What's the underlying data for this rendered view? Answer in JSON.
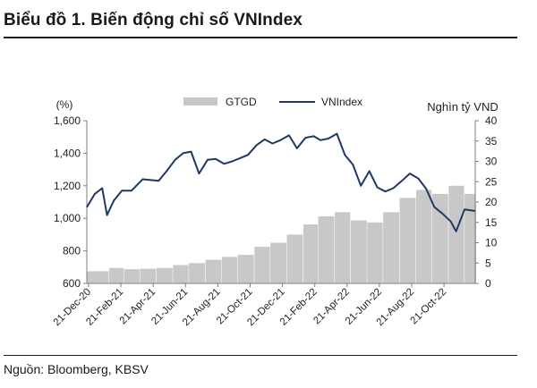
{
  "header": {
    "title": "Biểu đồ 1. Biến động chỉ số VNIndex"
  },
  "footer": {
    "source": "Nguồn: Bloomberg, KBSV"
  },
  "colors": {
    "line": "#1f3864",
    "bar": "#c8c8c8",
    "axis": "#7f7f7f"
  },
  "chart_data": {
    "type": "bar+line",
    "title": "",
    "left_axis": {
      "label": "(%)",
      "ylim": [
        600,
        1600
      ],
      "ticks": [
        "600",
        "800",
        "1,000",
        "1,200",
        "1,400",
        "1,600"
      ]
    },
    "right_axis": {
      "label": "Nghìn tỷ VND",
      "ylim": [
        0,
        40
      ],
      "ticks": [
        "0",
        "5",
        "10",
        "15",
        "20",
        "25",
        "30",
        "35",
        "40"
      ]
    },
    "x_tick_labels": [
      "21-Dec-20",
      "21-Feb-21",
      "21-Apr-21",
      "21-Jun-21",
      "21-Aug-21",
      "21-Oct-21",
      "21-Dec-21",
      "21-Feb-22",
      "21-Apr-22",
      "21-Jun-22",
      "21-Aug-22",
      "21-Oct-22"
    ],
    "x_range": [
      "2020-12-21",
      "2022-12-21"
    ],
    "grid": false,
    "legend": {
      "position": "top",
      "entries": [
        "GTGD",
        "VNIndex"
      ]
    },
    "series": [
      {
        "name": "VNIndex",
        "type": "line",
        "axis": "left",
        "points": [
          [
            "2020-12-21",
            1068
          ],
          [
            "2021-01-05",
            1150
          ],
          [
            "2021-01-19",
            1185
          ],
          [
            "2021-01-28",
            1020
          ],
          [
            "2021-02-10",
            1110
          ],
          [
            "2021-02-25",
            1170
          ],
          [
            "2021-03-15",
            1170
          ],
          [
            "2021-04-05",
            1240
          ],
          [
            "2021-04-20",
            1235
          ],
          [
            "2021-05-05",
            1230
          ],
          [
            "2021-05-20",
            1290
          ],
          [
            "2021-06-05",
            1360
          ],
          [
            "2021-06-20",
            1400
          ],
          [
            "2021-07-05",
            1410
          ],
          [
            "2021-07-20",
            1275
          ],
          [
            "2021-08-05",
            1360
          ],
          [
            "2021-08-20",
            1365
          ],
          [
            "2021-09-05",
            1335
          ],
          [
            "2021-09-20",
            1350
          ],
          [
            "2021-10-05",
            1370
          ],
          [
            "2021-10-20",
            1390
          ],
          [
            "2021-11-05",
            1450
          ],
          [
            "2021-11-20",
            1485
          ],
          [
            "2021-12-05",
            1460
          ],
          [
            "2021-12-20",
            1480
          ],
          [
            "2022-01-05",
            1510
          ],
          [
            "2022-01-20",
            1430
          ],
          [
            "2022-02-05",
            1495
          ],
          [
            "2022-02-20",
            1505
          ],
          [
            "2022-03-05",
            1480
          ],
          [
            "2022-03-20",
            1490
          ],
          [
            "2022-04-05",
            1520
          ],
          [
            "2022-04-20",
            1390
          ],
          [
            "2022-05-05",
            1330
          ],
          [
            "2022-05-20",
            1200
          ],
          [
            "2022-06-05",
            1290
          ],
          [
            "2022-06-20",
            1190
          ],
          [
            "2022-07-05",
            1165
          ],
          [
            "2022-07-20",
            1185
          ],
          [
            "2022-08-05",
            1230
          ],
          [
            "2022-08-20",
            1275
          ],
          [
            "2022-09-05",
            1245
          ],
          [
            "2022-09-20",
            1180
          ],
          [
            "2022-10-05",
            1070
          ],
          [
            "2022-10-20",
            1030
          ],
          [
            "2022-11-05",
            980
          ],
          [
            "2022-11-15",
            920
          ],
          [
            "2022-12-01",
            1055
          ],
          [
            "2022-12-21",
            1045
          ]
        ]
      },
      {
        "name": "GTGD",
        "type": "bar",
        "axis": "right",
        "points": [
          [
            "2020-12-21",
            3.0
          ],
          [
            "2021-02-01",
            3.8
          ],
          [
            "2021-03-01",
            3.5
          ],
          [
            "2021-04-01",
            3.6
          ],
          [
            "2021-05-01",
            3.8
          ],
          [
            "2021-06-01",
            4.5
          ],
          [
            "2021-07-01",
            5.0
          ],
          [
            "2021-08-01",
            5.8
          ],
          [
            "2021-09-01",
            6.5
          ],
          [
            "2021-10-01",
            7.0
          ],
          [
            "2021-11-01",
            9.0
          ],
          [
            "2021-12-01",
            10.0
          ],
          [
            "2022-01-01",
            12.0
          ],
          [
            "2022-02-01",
            14.5
          ],
          [
            "2022-03-01",
            16.5
          ],
          [
            "2022-04-01",
            17.5
          ],
          [
            "2022-05-01",
            15.5
          ],
          [
            "2022-06-01",
            15.0
          ],
          [
            "2022-07-01",
            17.5
          ],
          [
            "2022-08-01",
            21.0
          ],
          [
            "2022-09-01",
            23.0
          ],
          [
            "2022-10-01",
            22.0
          ],
          [
            "2022-11-01",
            24.0
          ],
          [
            "2022-12-01",
            22.0
          ],
          [
            "2022-12-21",
            20.0
          ]
        ]
      }
    ]
  }
}
